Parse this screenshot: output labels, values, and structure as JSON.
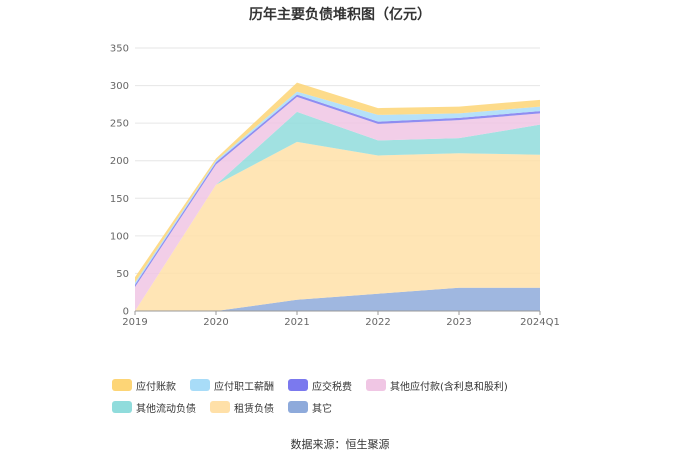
{
  "chart_data": {
    "type": "area",
    "stacked": true,
    "title": "历年主要负债堆积图（亿元）",
    "categories": [
      "2019",
      "2020",
      "2021",
      "2022",
      "2023",
      "2024Q1"
    ],
    "ylim": [
      0,
      350
    ],
    "yticks": [
      0,
      50,
      100,
      150,
      200,
      250,
      300,
      350
    ],
    "grid": true,
    "legend_position": "bottom",
    "series": [
      {
        "name": "其它",
        "color": "#8eaadb",
        "values": [
          0,
          0,
          15,
          23,
          31,
          31
        ]
      },
      {
        "name": "租赁负债",
        "color": "#ffe0a8",
        "values": [
          0,
          168,
          210,
          184,
          179,
          177
        ]
      },
      {
        "name": "其他流动负债",
        "color": "#90dcdc",
        "values": [
          0,
          0,
          40,
          20,
          20,
          40
        ]
      },
      {
        "name": "其他应付款(含利息和股利)",
        "color": "#f0c6e4",
        "values": [
          32,
          27,
          20,
          22,
          24,
          15
        ]
      },
      {
        "name": "应交税费",
        "color": "#7b79ee",
        "values": [
          3,
          3,
          3,
          3,
          3,
          3
        ]
      },
      {
        "name": "应付职工薪酬",
        "color": "#a8dcf8",
        "values": [
          3,
          2,
          4,
          9,
          6,
          6
        ]
      },
      {
        "name": "应付账款",
        "color": "#fdd576",
        "values": [
          7,
          3,
          12,
          9,
          9,
          9
        ]
      }
    ],
    "legend_order": [
      "应付账款",
      "应付职工薪酬",
      "应交税费",
      "其他应付款(含利息和股利)",
      "其他流动负债",
      "租赁负债",
      "其它"
    ]
  },
  "source_text": "数据来源：恒生聚源"
}
